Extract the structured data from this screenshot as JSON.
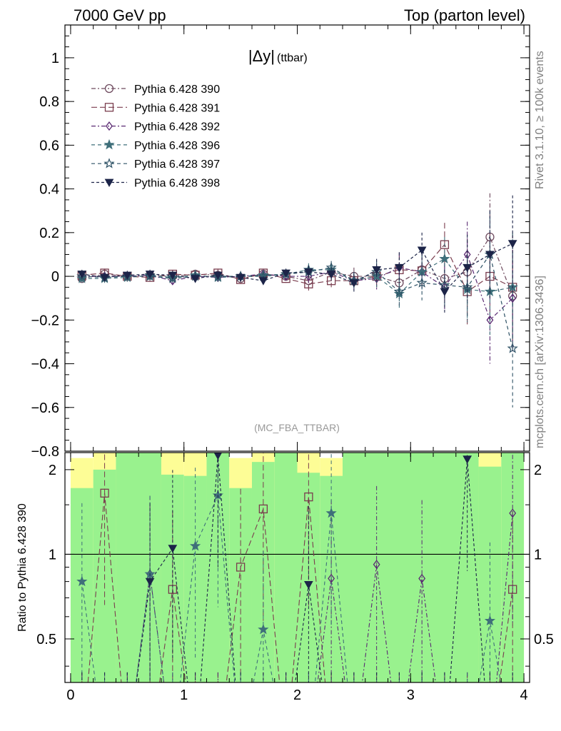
{
  "header": {
    "left": "7000 GeV pp",
    "right": "Top (parton level)"
  },
  "side_labels": {
    "rivet": "Rivet 3.1.10, ≥ 100k events",
    "mcplots": "mcplots.cern.ch [arXiv:1306.3436]"
  },
  "chart_data": {
    "type": "line",
    "title": "|Δy|",
    "title_sub": "(ttbar)",
    "analysis_tag": "(MC_FBA_TTBAR)",
    "xlim": [
      -0.05,
      4.05
    ],
    "ylim": [
      -0.8,
      1.15
    ],
    "xticks": [
      0,
      1,
      2,
      3,
      4
    ],
    "yticks": [
      1,
      0.8,
      0.6,
      0.4,
      0.2,
      0,
      -0.2,
      -0.4,
      -0.6,
      -0.8
    ],
    "ytick_labels": [
      "1",
      "0.8",
      "0.6",
      "0.4",
      "0.2",
      "0",
      "−0.2",
      "−0.4",
      "−0.6",
      "−0.8"
    ],
    "legend_position": "top-left",
    "x": [
      0.1,
      0.3,
      0.5,
      0.7,
      0.9,
      1.1,
      1.3,
      1.5,
      1.7,
      1.9,
      2.1,
      2.3,
      2.5,
      2.7,
      2.9,
      3.1,
      3.3,
      3.5,
      3.7,
      3.9
    ],
    "series": [
      {
        "name": "Pythia 6.428 390",
        "color": "#6e4a5e",
        "marker": "circle-open",
        "dash": "6,3,2,3",
        "values": [
          -0.01,
          0.01,
          0.0,
          0.005,
          0.0,
          0.01,
          0.005,
          -0.01,
          0.01,
          0.0,
          -0.02,
          0.02,
          0.0,
          0.0,
          -0.03,
          0.03,
          -0.01,
          0.02,
          0.18,
          -0.09
        ],
        "errors": [
          0.02,
          0.02,
          0.02,
          0.02,
          0.02,
          0.02,
          0.02,
          0.02,
          0.02,
          0.02,
          0.03,
          0.03,
          0.04,
          0.05,
          0.07,
          0.08,
          0.1,
          0.15,
          0.2,
          0.25
        ]
      },
      {
        "name": "Pythia 6.428 391",
        "color": "#7a3d4e",
        "marker": "square-open",
        "dash": "8,4",
        "values": [
          0.005,
          0.015,
          0.0,
          -0.005,
          0.01,
          0.005,
          0.015,
          -0.015,
          0.015,
          -0.01,
          -0.035,
          -0.02,
          -0.02,
          0.0,
          0.03,
          0.025,
          0.145,
          -0.07,
          0.0,
          -0.05
        ],
        "errors": [
          0.02,
          0.02,
          0.02,
          0.02,
          0.02,
          0.02,
          0.02,
          0.02,
          0.02,
          0.02,
          0.03,
          0.03,
          0.04,
          0.05,
          0.07,
          0.08,
          0.1,
          0.15,
          0.2,
          0.25
        ]
      },
      {
        "name": "Pythia 6.428 392",
        "color": "#5a2a72",
        "marker": "diamond-open",
        "dash": "6,3,2,3",
        "values": [
          0.0,
          0.0,
          0.0,
          0.005,
          -0.02,
          0.0,
          -0.005,
          0.0,
          0.01,
          0.0,
          0.0,
          0.02,
          -0.02,
          -0.01,
          0.04,
          0.02,
          -0.05,
          0.1,
          -0.2,
          -0.1
        ],
        "errors": [
          0.02,
          0.02,
          0.02,
          0.02,
          0.02,
          0.02,
          0.02,
          0.02,
          0.02,
          0.02,
          0.03,
          0.03,
          0.04,
          0.05,
          0.07,
          0.08,
          0.1,
          0.15,
          0.2,
          0.25
        ]
      },
      {
        "name": "Pythia 6.428 396",
        "color": "#3f6f7a",
        "marker": "star",
        "dash": "5,4",
        "values": [
          -0.01,
          -0.01,
          -0.005,
          0.005,
          -0.005,
          0.005,
          -0.005,
          0.0,
          0.005,
          0.01,
          0.03,
          0.03,
          -0.02,
          0.0,
          -0.08,
          0.02,
          0.08,
          -0.06,
          -0.07,
          -0.05
        ],
        "errors": [
          0.02,
          0.02,
          0.02,
          0.02,
          0.02,
          0.02,
          0.02,
          0.02,
          0.02,
          0.02,
          0.03,
          0.03,
          0.04,
          0.05,
          0.07,
          0.08,
          0.1,
          0.15,
          0.2,
          0.25
        ]
      },
      {
        "name": "Pythia 6.428 397",
        "color": "#2e5266",
        "marker": "star-open",
        "dash": "5,4",
        "values": [
          0.0,
          -0.005,
          0.0,
          0.0,
          -0.01,
          0.0,
          0.0,
          0.0,
          0.0,
          0.01,
          0.02,
          0.04,
          -0.02,
          0.02,
          -0.07,
          -0.03,
          -0.04,
          -0.05,
          0.1,
          -0.33
        ],
        "errors": [
          0.02,
          0.02,
          0.02,
          0.02,
          0.02,
          0.02,
          0.02,
          0.02,
          0.02,
          0.02,
          0.03,
          0.03,
          0.04,
          0.05,
          0.07,
          0.08,
          0.1,
          0.15,
          0.2,
          0.27
        ]
      },
      {
        "name": "Pythia 6.428 398",
        "color": "#1c2448",
        "marker": "triangle-down",
        "dash": "4,3",
        "values": [
          0.01,
          -0.005,
          0.005,
          0.01,
          0.005,
          -0.01,
          0.005,
          -0.005,
          -0.02,
          0.015,
          0.02,
          0.01,
          -0.03,
          0.03,
          0.04,
          0.12,
          -0.07,
          0.04,
          0.1,
          0.15
        ],
        "errors": [
          0.02,
          0.02,
          0.02,
          0.02,
          0.02,
          0.02,
          0.02,
          0.02,
          0.02,
          0.02,
          0.03,
          0.03,
          0.04,
          0.05,
          0.07,
          0.08,
          0.1,
          0.15,
          0.2,
          0.22
        ]
      }
    ],
    "ratio_panel": {
      "ylabel": "Ratio to Pythia 6.428 390",
      "ylim": [
        0.35,
        2.3
      ],
      "yticks": [
        0.5,
        1,
        2
      ],
      "ytick_labels": [
        "0.5",
        "1",
        "2"
      ],
      "reference_line": 1,
      "bands": [
        {
          "x0": 0.0,
          "x1": 0.2,
          "green": 1.72,
          "yellow": 2.2
        },
        {
          "x0": 0.2,
          "x1": 0.4,
          "green": 2.0,
          "yellow": 2.3
        },
        {
          "x0": 0.4,
          "x1": 0.8,
          "green": 2.3,
          "yellow": 2.3
        },
        {
          "x0": 0.8,
          "x1": 1.0,
          "green": 1.92,
          "yellow": 2.3
        },
        {
          "x0": 1.0,
          "x1": 1.2,
          "green": 1.9,
          "yellow": 2.3
        },
        {
          "x0": 1.2,
          "x1": 1.4,
          "green": 2.3,
          "yellow": 2.3
        },
        {
          "x0": 1.4,
          "x1": 1.6,
          "green": 1.72,
          "yellow": 2.2
        },
        {
          "x0": 1.6,
          "x1": 1.8,
          "green": 2.13,
          "yellow": 2.3
        },
        {
          "x0": 1.8,
          "x1": 2.0,
          "green": 2.3,
          "yellow": 2.3
        },
        {
          "x0": 2.0,
          "x1": 2.2,
          "green": 1.95,
          "yellow": 2.3
        },
        {
          "x0": 2.2,
          "x1": 2.4,
          "green": 1.9,
          "yellow": 2.2
        },
        {
          "x0": 2.4,
          "x1": 3.6,
          "green": 2.3,
          "yellow": 2.3
        },
        {
          "x0": 3.6,
          "x1": 3.8,
          "green": 2.05,
          "yellow": 2.3
        },
        {
          "x0": 3.8,
          "x1": 4.0,
          "green": 2.3,
          "yellow": 2.3
        }
      ],
      "ratio_series": [
        {
          "name": "Pythia 6.428 391",
          "values": [
            0.2,
            1.65,
            0.2,
            0.2,
            0.75,
            0.2,
            0.2,
            0.9,
            1.45,
            0.2,
            1.6,
            0.2,
            0.2,
            0.2,
            0.2,
            0.2,
            0.2,
            0.2,
            0.2,
            0.75
          ]
        },
        {
          "name": "Pythia 6.428 392",
          "values": [
            0.2,
            0.2,
            0.2,
            0.85,
            0.2,
            0.2,
            0.2,
            0.2,
            0.2,
            0.2,
            0.2,
            0.82,
            0.2,
            0.92,
            0.2,
            0.82,
            0.2,
            0.2,
            0.2,
            1.4
          ]
        },
        {
          "name": "Pythia 6.428 396",
          "values": [
            0.8,
            0.2,
            0.2,
            0.85,
            0.2,
            1.07,
            1.62,
            0.2,
            0.54,
            0.2,
            0.2,
            1.4,
            0.2,
            0.2,
            0.2,
            0.2,
            0.2,
            0.2,
            0.58,
            0.2
          ]
        },
        {
          "name": "Pythia 6.428 398",
          "values": [
            0.2,
            0.2,
            0.2,
            0.8,
            1.05,
            0.2,
            2.25,
            0.2,
            0.2,
            0.2,
            0.78,
            0.2,
            0.2,
            0.2,
            0.2,
            0.2,
            0.2,
            2.18,
            0.2,
            0.2
          ]
        }
      ]
    }
  }
}
